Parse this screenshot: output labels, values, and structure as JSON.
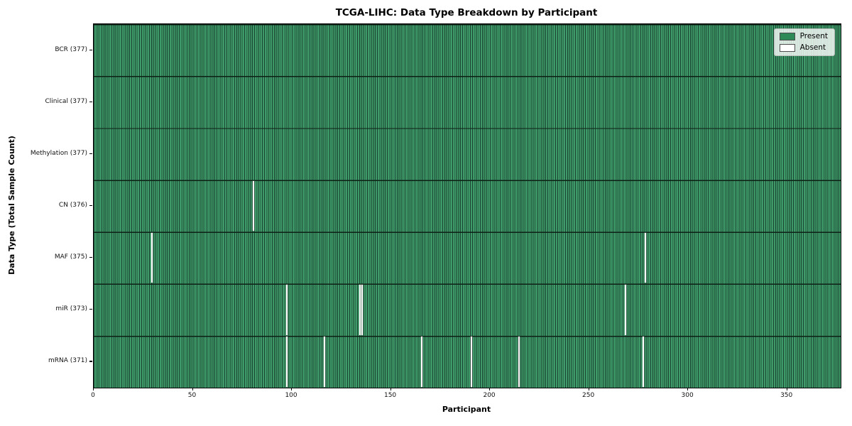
{
  "colors": {
    "present_fill": "#3e9a68",
    "present_swatch": "#2e8b57",
    "bar_edge": "#1b4230",
    "row_line": "#0d2015",
    "absent_fill": "#ffffff",
    "axis": "#000000",
    "legend_bg": "rgba(255,255,255,0.8)"
  },
  "chart_data": {
    "type": "heatmap",
    "title": "TCGA-LIHC: Data Type Breakdown by Participant",
    "xlabel": "Participant",
    "ylabel": "Data Type (Total Sample Count)",
    "x_range": [
      0,
      377
    ],
    "n_participants": 377,
    "x_ticks": [
      0,
      50,
      100,
      150,
      200,
      250,
      300,
      350
    ],
    "grid": false,
    "legend_position": "upper right",
    "legend": [
      {
        "label": "Present",
        "color": "#2e8b57"
      },
      {
        "label": "Absent",
        "color": "#ffffff"
      }
    ],
    "rows": [
      {
        "label": "BCR (377)",
        "data_type": "BCR",
        "present_count": 377,
        "absent_participant_indices": []
      },
      {
        "label": "Clinical (377)",
        "data_type": "Clinical",
        "present_count": 377,
        "absent_participant_indices": []
      },
      {
        "label": "Methylation (377)",
        "data_type": "Methylation",
        "present_count": 377,
        "absent_participant_indices": []
      },
      {
        "label": "CN (376)",
        "data_type": "CN",
        "present_count": 376,
        "absent_participant_indices": [
          80
        ]
      },
      {
        "label": "MAF (375)",
        "data_type": "MAF",
        "present_count": 375,
        "absent_participant_indices": [
          29,
          278
        ]
      },
      {
        "label": "miR (373)",
        "data_type": "miR",
        "present_count": 373,
        "absent_participant_indices": [
          97,
          134,
          135,
          268
        ]
      },
      {
        "label": "mRNA (371)",
        "data_type": "mRNA",
        "present_count": 371,
        "absent_participant_indices": [
          97,
          116,
          165,
          190,
          214,
          277
        ]
      }
    ]
  }
}
